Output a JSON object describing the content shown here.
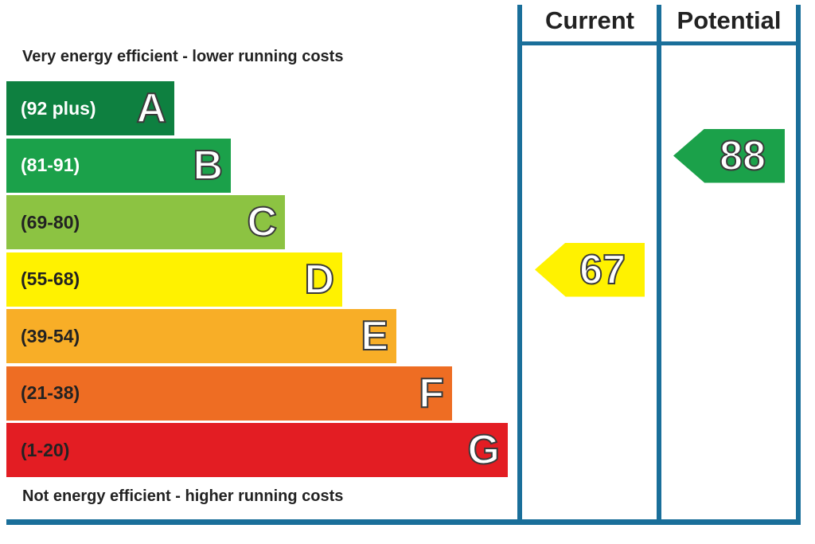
{
  "chart_data": {
    "type": "bar",
    "title": "",
    "columns": [
      "Current",
      "Potential"
    ],
    "top_caption": "Very energy efficient - lower running costs",
    "bottom_caption": "Not energy efficient - higher running costs",
    "bands": [
      {
        "letter": "A",
        "range": "(92 plus)",
        "min": 92,
        "max": 100,
        "color": "#0e8040",
        "range_color": "#ffffff"
      },
      {
        "letter": "B",
        "range": "(81-91)",
        "min": 81,
        "max": 91,
        "color": "#1ba14a",
        "range_color": "#ffffff"
      },
      {
        "letter": "C",
        "range": "(69-80)",
        "min": 69,
        "max": 80,
        "color": "#8cc342",
        "range_color": "#222222"
      },
      {
        "letter": "D",
        "range": "(55-68)",
        "min": 55,
        "max": 68,
        "color": "#fff200",
        "range_color": "#222222"
      },
      {
        "letter": "E",
        "range": "(39-54)",
        "min": 39,
        "max": 54,
        "color": "#f8ae27",
        "range_color": "#222222"
      },
      {
        "letter": "F",
        "range": "(21-38)",
        "min": 21,
        "max": 38,
        "color": "#ee6d23",
        "range_color": "#222222"
      },
      {
        "letter": "G",
        "range": "(1-20)",
        "min": 1,
        "max": 20,
        "color": "#e31d23",
        "range_color": "#222222"
      }
    ],
    "ratings": {
      "current": {
        "value": 67,
        "label": "67",
        "band": "D",
        "color": "#fff200"
      },
      "potential": {
        "value": 88,
        "label": "88",
        "band": "B",
        "color": "#1ba14a"
      }
    }
  }
}
